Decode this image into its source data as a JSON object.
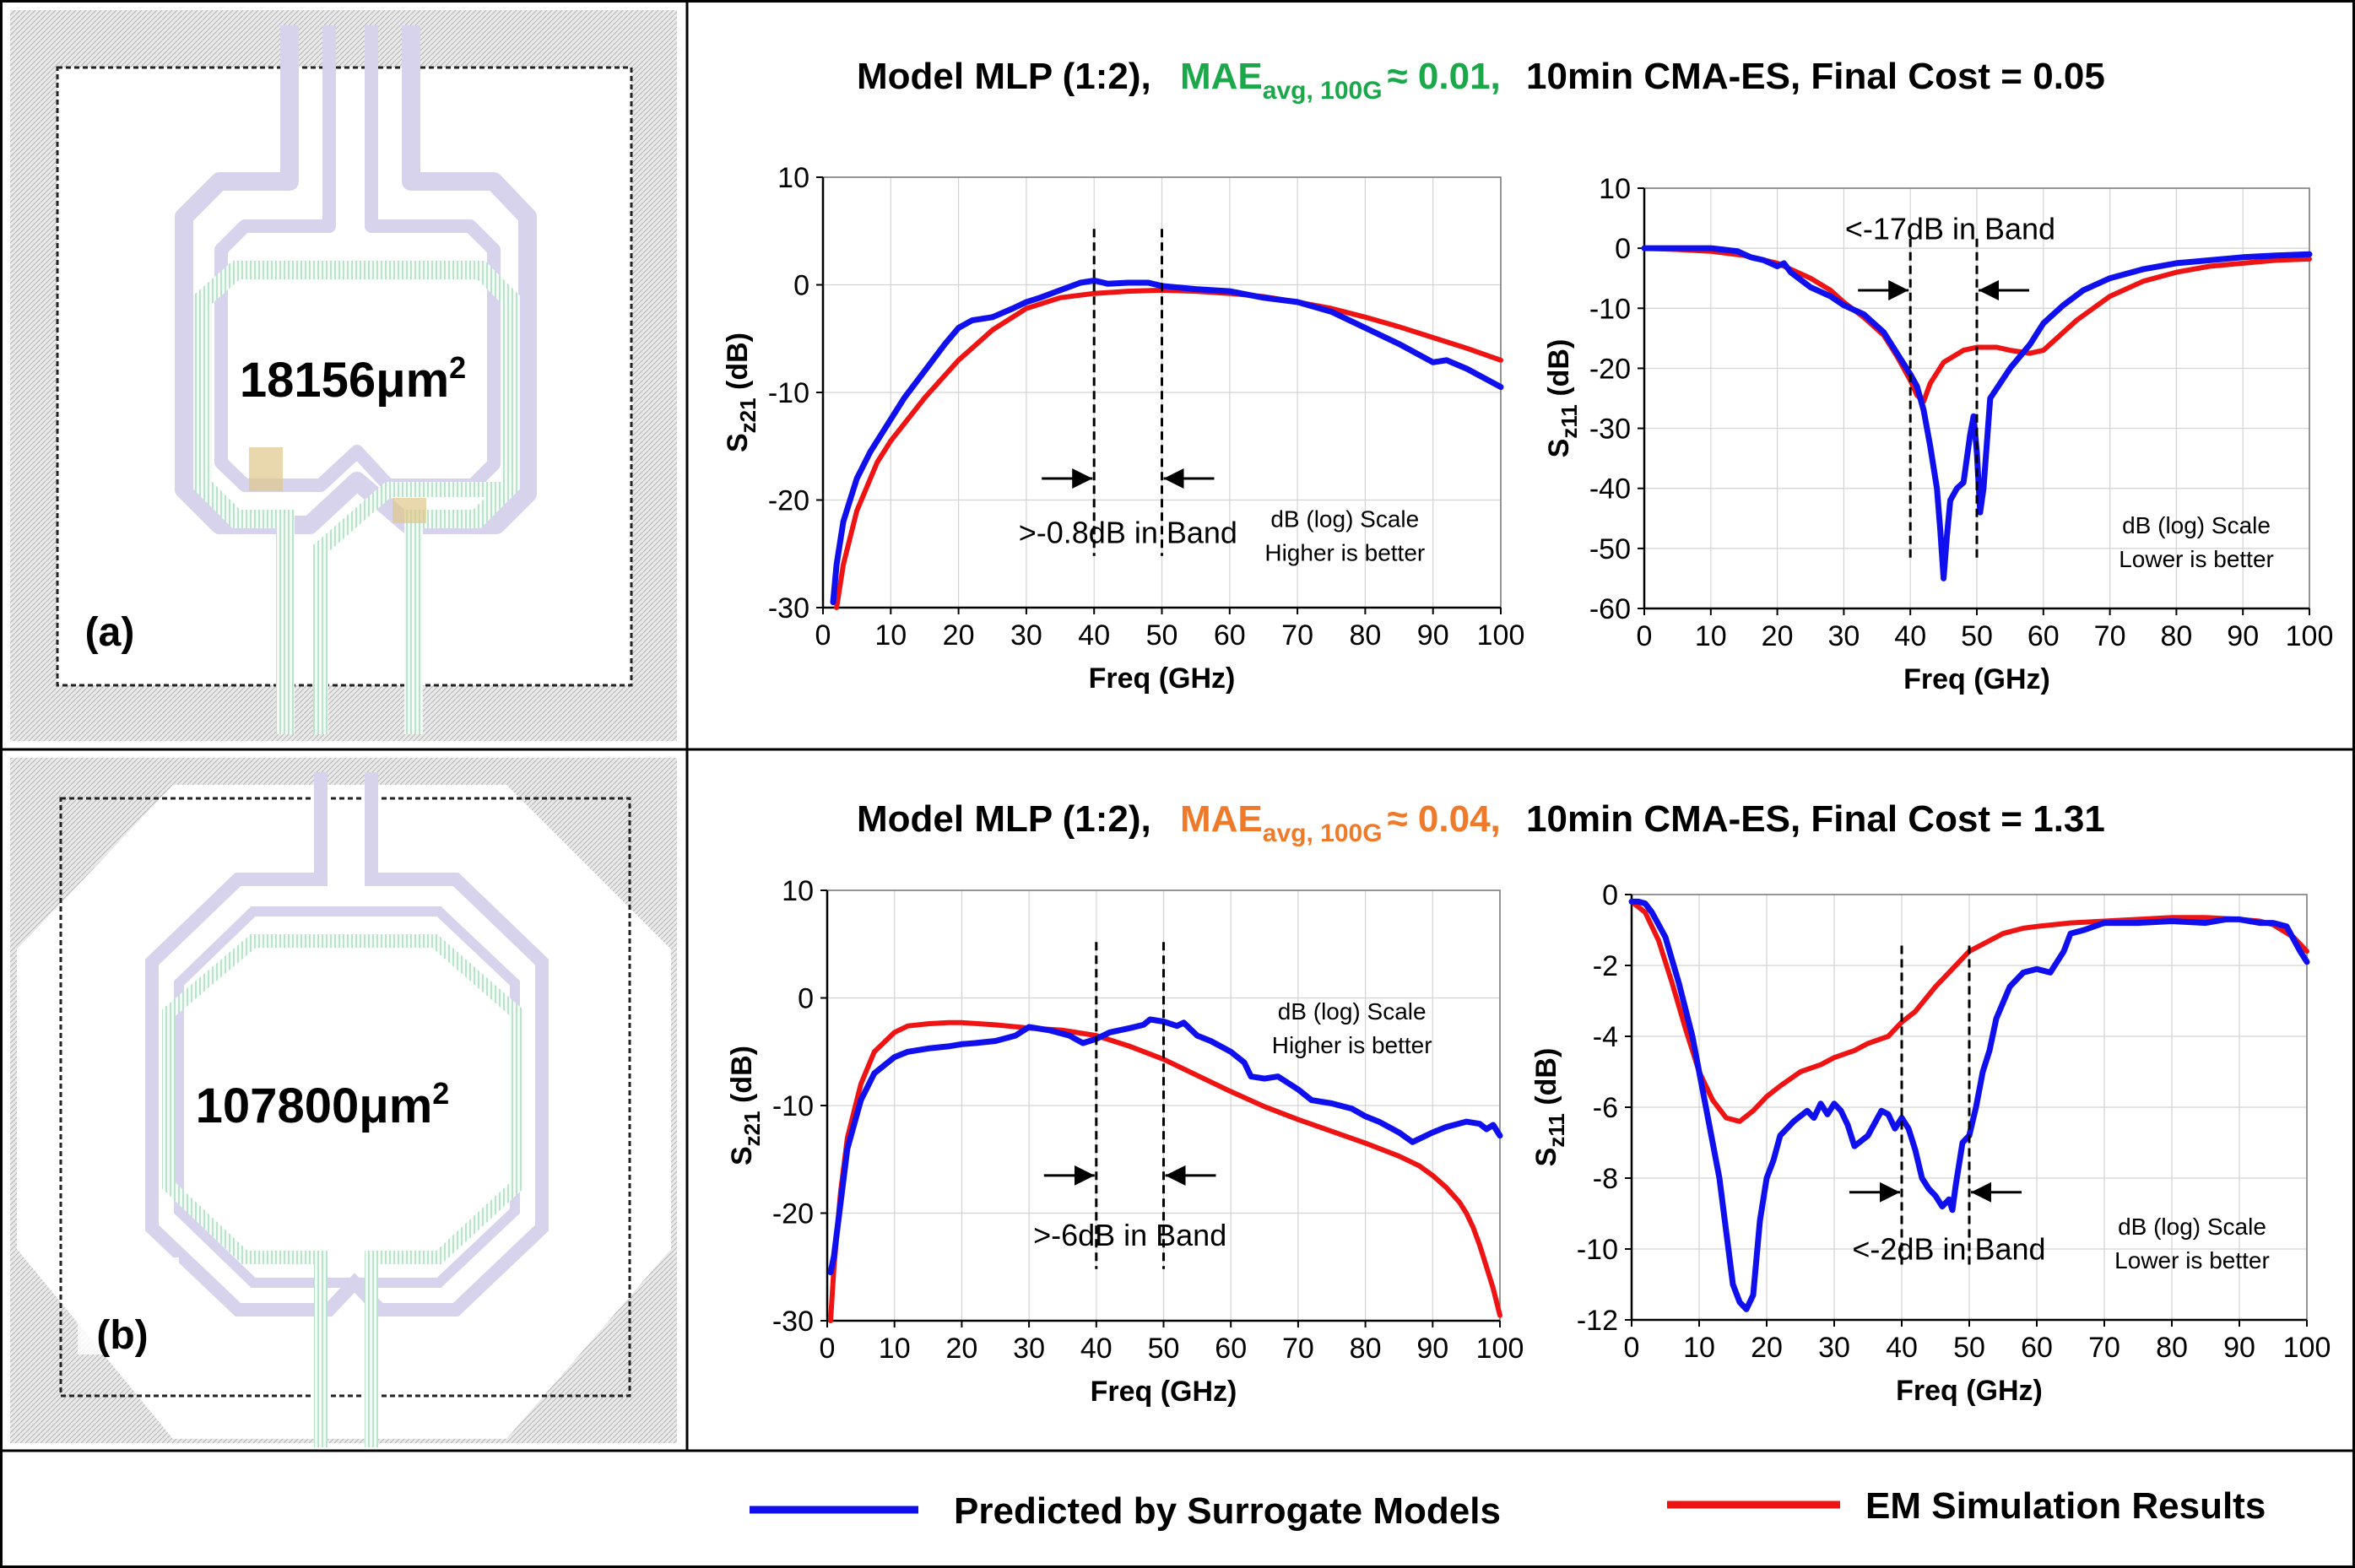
{
  "rows": [
    {
      "layout": {
        "label": "(a)",
        "area": "18156μm",
        "area_sup": "2",
        "shape": "square-coupled-inductor"
      },
      "title": {
        "prefix": "Model MLP (1:2),",
        "mae_main": "MAE",
        "mae_sub": "avg, 100G",
        "mae_value": "≈ 0.01,",
        "mae_color": "#1aa84a",
        "suffix": "10min CMA-ES,  Final Cost = 0.05"
      }
    },
    {
      "layout": {
        "label": "(b)",
        "area": "107800μm",
        "area_sup": "2",
        "shape": "octagonal-coupled-inductor"
      },
      "title": {
        "prefix": "Model MLP (1:2),",
        "mae_main": "MAE",
        "mae_sub": "avg, 100G",
        "mae_value": "≈ 0.04,",
        "mae_color": "#ee7a2a",
        "suffix": "10min CMA-ES,  Final Cost = 1.31"
      }
    }
  ],
  "colors": {
    "predicted": "#1010ee",
    "em": "#ee1414"
  },
  "legend": {
    "predicted": "Predicted by Surrogate Models",
    "em": "EM Simulation Results"
  },
  "chart_data": [
    {
      "id": "a-s21",
      "type": "line",
      "xlabel": "Freq (GHz)",
      "ylabel_main": "S",
      "ylabel_sub": "z21",
      "ylabel_suffix": " (dB)",
      "xlim": [
        0,
        100
      ],
      "ylim": [
        -30,
        10
      ],
      "xticks": [
        0,
        10,
        20,
        30,
        40,
        50,
        60,
        70,
        80,
        90,
        100
      ],
      "yticks": [
        10,
        0,
        -10,
        -20,
        -30
      ],
      "band_lines": [
        40,
        50
      ],
      "arrows_y": -18,
      "arrow_dir": "inward",
      "band_label": ">-0.8dB in Band",
      "band_label_pos": [
        45,
        -24
      ],
      "note": [
        "dB (log) Scale",
        "Higher is better"
      ],
      "note_pos": [
        77,
        -22.5
      ],
      "series": [
        {
          "name": "Predicted by Surrogate Models",
          "key": "predicted",
          "x": [
            1.5,
            2,
            3,
            5,
            7,
            10,
            12,
            15,
            18,
            20,
            22,
            25,
            28,
            30,
            32,
            35,
            38,
            40,
            42,
            45,
            48,
            50,
            55,
            60,
            65,
            70,
            75,
            80,
            85,
            90,
            92,
            95,
            100
          ],
          "y": [
            -29.5,
            -26,
            -22,
            -18,
            -15.5,
            -12.5,
            -10.5,
            -8,
            -5.5,
            -4,
            -3.3,
            -3,
            -2.2,
            -1.6,
            -1.2,
            -0.5,
            0.2,
            0.4,
            0.1,
            0.2,
            0.2,
            -0.1,
            -0.4,
            -0.6,
            -1.2,
            -1.6,
            -2.5,
            -4,
            -5.5,
            -7.2,
            -7,
            -7.8,
            -9.5
          ]
        },
        {
          "name": "EM Simulation Results",
          "key": "em",
          "x": [
            2,
            3,
            5,
            8,
            10,
            15,
            20,
            25,
            30,
            35,
            40,
            45,
            50,
            55,
            60,
            65,
            70,
            75,
            80,
            85,
            90,
            95,
            100
          ],
          "y": [
            -30,
            -26,
            -21,
            -16.5,
            -14.5,
            -10.5,
            -7,
            -4.2,
            -2.2,
            -1.2,
            -0.8,
            -0.6,
            -0.5,
            -0.6,
            -0.8,
            -1.1,
            -1.6,
            -2.2,
            -3,
            -3.9,
            -4.9,
            -5.9,
            -7
          ]
        }
      ]
    },
    {
      "id": "a-s11",
      "type": "line",
      "xlabel": "Freq (GHz)",
      "ylabel_main": "S",
      "ylabel_sub": "z11",
      "ylabel_suffix": " (dB)",
      "xlim": [
        0,
        100
      ],
      "ylim": [
        -60,
        10
      ],
      "xticks": [
        0,
        10,
        20,
        30,
        40,
        50,
        60,
        70,
        80,
        90,
        100
      ],
      "yticks": [
        10,
        0,
        -10,
        -20,
        -30,
        -40,
        -50,
        -60
      ],
      "band_lines": [
        40,
        50
      ],
      "arrows_y": -7,
      "arrow_dir": "inward",
      "band_label": "<-17dB in Band",
      "band_label_pos": [
        46,
        1.5
      ],
      "note": [
        "dB (log) Scale",
        "Lower is better"
      ],
      "note_pos": [
        83,
        -47.5
      ],
      "series": [
        {
          "name": "Predicted by Surrogate Models",
          "key": "predicted",
          "x": [
            0,
            5,
            10,
            14,
            16,
            18,
            20,
            21,
            22,
            25,
            28,
            30,
            33,
            36,
            38,
            40,
            41,
            42,
            43,
            44,
            44.5,
            45,
            45.5,
            46,
            47,
            48,
            49,
            49.5,
            50,
            50.5,
            51,
            52,
            55,
            58,
            60,
            63,
            66,
            70,
            75,
            80,
            85,
            90,
            95,
            100
          ],
          "y": [
            0,
            0,
            0,
            -0.5,
            -1.5,
            -2,
            -3,
            -2.5,
            -4,
            -6.5,
            -8,
            -9.5,
            -11,
            -14,
            -17.5,
            -21,
            -23,
            -27,
            -33,
            -40,
            -47,
            -55,
            -48,
            -42,
            -40,
            -39,
            -31,
            -28,
            -34,
            -44,
            -40,
            -25,
            -20,
            -16,
            -12.5,
            -9.5,
            -7,
            -5,
            -3.5,
            -2.5,
            -2,
            -1.5,
            -1.2,
            -1
          ]
        },
        {
          "name": "EM Simulation Results",
          "key": "em",
          "x": [
            0,
            5,
            10,
            15,
            20,
            25,
            28,
            30,
            33,
            36,
            38,
            40,
            41,
            42,
            43,
            45,
            48,
            50,
            53,
            55,
            58,
            60,
            62,
            65,
            70,
            75,
            80,
            85,
            90,
            95,
            100
          ],
          "y": [
            0,
            -0.2,
            -0.5,
            -1.2,
            -2.5,
            -5,
            -7,
            -9,
            -11.5,
            -14.5,
            -18,
            -22,
            -24.5,
            -25.5,
            -22.5,
            -19,
            -17,
            -16.5,
            -16.5,
            -17,
            -17.5,
            -17,
            -15,
            -12,
            -8,
            -5.5,
            -4,
            -3,
            -2.5,
            -2,
            -1.8
          ]
        }
      ]
    },
    {
      "id": "b-s21",
      "type": "line",
      "xlabel": "Freq (GHz)",
      "ylabel_main": "S",
      "ylabel_sub": "z21",
      "ylabel_suffix": " (dB)",
      "xlim": [
        0,
        100
      ],
      "ylim": [
        -30,
        10
      ],
      "xticks": [
        0,
        10,
        20,
        30,
        40,
        50,
        60,
        70,
        80,
        90,
        100
      ],
      "yticks": [
        10,
        0,
        -10,
        -20,
        -30
      ],
      "band_lines": [
        40,
        50
      ],
      "arrows_y": -16.5,
      "arrow_dir": "inward",
      "band_label": ">-6dB in Band",
      "band_label_pos": [
        45,
        -23
      ],
      "note": [
        "dB (log) Scale",
        "Higher is better"
      ],
      "note_pos": [
        78,
        -2
      ],
      "series": [
        {
          "name": "Predicted by Surrogate Models",
          "key": "predicted",
          "x": [
            0.5,
            1,
            2,
            3,
            5,
            7,
            10,
            12,
            15,
            18,
            20,
            22,
            25,
            28,
            30,
            33,
            36,
            38,
            40,
            42,
            45,
            47,
            48,
            50,
            52,
            53,
            55,
            57,
            60,
            62,
            63,
            65,
            67,
            70,
            72,
            75,
            78,
            80,
            82,
            85,
            87,
            90,
            92,
            95,
            97,
            98,
            99,
            100
          ],
          "y": [
            -25.5,
            -24,
            -19,
            -14,
            -9.5,
            -7,
            -5.5,
            -5,
            -4.7,
            -4.5,
            -4.3,
            -4.2,
            -4,
            -3.5,
            -2.7,
            -3,
            -3.5,
            -4.2,
            -3.8,
            -3.2,
            -2.8,
            -2.5,
            -2,
            -2.2,
            -2.6,
            -2.3,
            -3.5,
            -4,
            -5,
            -6,
            -7.3,
            -7.5,
            -7.3,
            -8.5,
            -9.5,
            -9.8,
            -10.3,
            -11,
            -11.5,
            -12.5,
            -13.4,
            -12.5,
            -12,
            -11.5,
            -11.7,
            -12.2,
            -11.8,
            -12.8
          ]
        },
        {
          "name": "EM Simulation Results",
          "key": "em",
          "x": [
            0.5,
            1,
            2,
            3,
            5,
            7,
            10,
            12,
            15,
            18,
            20,
            25,
            30,
            35,
            40,
            45,
            50,
            55,
            60,
            65,
            70,
            75,
            80,
            85,
            88,
            90,
            92,
            94,
            95,
            96,
            97,
            98,
            99,
            100
          ],
          "y": [
            -30,
            -25,
            -18,
            -13,
            -8,
            -5,
            -3.2,
            -2.6,
            -2.4,
            -2.3,
            -2.3,
            -2.5,
            -2.8,
            -3,
            -3.5,
            -4.5,
            -5.7,
            -7.2,
            -8.7,
            -10.1,
            -11.3,
            -12.4,
            -13.5,
            -14.7,
            -15.6,
            -16.5,
            -17.6,
            -19,
            -20,
            -21.3,
            -23,
            -25,
            -27,
            -29.5
          ]
        }
      ]
    },
    {
      "id": "b-s11",
      "type": "line",
      "xlabel": "Freq (GHz)",
      "ylabel_main": "S",
      "ylabel_sub": "z11",
      "ylabel_suffix": " (dB)",
      "xlim": [
        0,
        100
      ],
      "ylim": [
        -12,
        0
      ],
      "xticks": [
        0,
        10,
        20,
        30,
        40,
        50,
        60,
        70,
        80,
        90,
        100
      ],
      "yticks": [
        0,
        -2,
        -4,
        -6,
        -8,
        -10,
        -12
      ],
      "band_lines": [
        40,
        50
      ],
      "arrows_y": -8.4,
      "arrow_dir": "inward",
      "band_label": "<-2dB in Band",
      "band_label_pos": [
        47,
        -10.3
      ],
      "note": [
        "dB (log) Scale",
        "Lower is better"
      ],
      "note_pos": [
        83,
        -9.6
      ],
      "series": [
        {
          "name": "Predicted by Surrogate Models",
          "key": "predicted",
          "x": [
            0,
            1,
            2,
            3,
            5,
            7,
            9,
            11,
            13,
            14,
            15,
            16,
            17,
            18,
            19,
            20,
            21,
            22,
            24,
            26,
            27,
            28,
            29,
            30,
            31,
            32,
            33,
            35,
            37,
            38,
            39,
            40,
            41,
            42,
            43,
            44,
            45,
            46,
            47,
            47.5,
            48,
            49,
            50,
            51,
            52,
            53,
            54,
            56,
            58,
            60,
            62,
            64,
            65,
            67,
            70,
            75,
            80,
            85,
            88,
            90,
            93,
            95,
            97,
            99,
            100
          ],
          "y": [
            -0.2,
            -0.2,
            -0.25,
            -0.5,
            -1.2,
            -2.5,
            -4,
            -6,
            -8,
            -9.5,
            -11,
            -11.5,
            -11.7,
            -11.3,
            -9.2,
            -8,
            -7.5,
            -6.8,
            -6.4,
            -6.1,
            -6.3,
            -5.9,
            -6.2,
            -5.9,
            -6.1,
            -6.5,
            -7.1,
            -6.8,
            -6.1,
            -6.2,
            -6.6,
            -6.3,
            -6.6,
            -7.2,
            -8,
            -8.3,
            -8.5,
            -8.8,
            -8.6,
            -8.9,
            -8.2,
            -7,
            -6.8,
            -6,
            -5,
            -4.4,
            -3.5,
            -2.6,
            -2.2,
            -2.1,
            -2.2,
            -1.6,
            -1.1,
            -1,
            -0.8,
            -0.8,
            -0.75,
            -0.8,
            -0.7,
            -0.7,
            -0.8,
            -0.8,
            -0.9,
            -1.6,
            -1.9
          ]
        },
        {
          "name": "EM Simulation Results",
          "key": "em",
          "x": [
            0,
            2,
            4,
            6,
            8,
            10,
            12,
            14,
            16,
            18,
            20,
            22,
            25,
            28,
            30,
            33,
            35,
            38,
            40,
            42,
            45,
            48,
            50,
            53,
            55,
            58,
            60,
            65,
            70,
            75,
            80,
            85,
            90,
            93,
            95,
            98,
            100
          ],
          "y": [
            -0.2,
            -0.5,
            -1.3,
            -2.5,
            -3.8,
            -5,
            -5.8,
            -6.3,
            -6.4,
            -6.1,
            -5.7,
            -5.4,
            -5,
            -4.8,
            -4.6,
            -4.4,
            -4.2,
            -4,
            -3.6,
            -3.3,
            -2.6,
            -2,
            -1.6,
            -1.3,
            -1.1,
            -0.95,
            -0.9,
            -0.8,
            -0.75,
            -0.7,
            -0.65,
            -0.65,
            -0.7,
            -0.75,
            -0.85,
            -1.2,
            -1.6
          ]
        }
      ]
    }
  ]
}
